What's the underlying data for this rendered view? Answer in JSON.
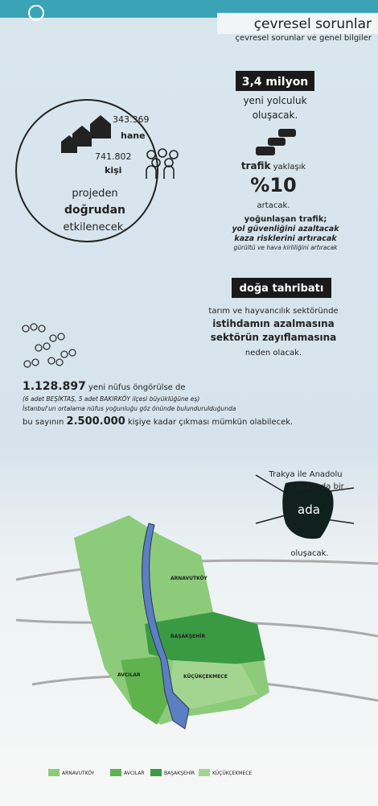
{
  "header": {
    "title": "çevresel sorunlar",
    "subtitle": "çevresel sorunlar ve genel bilgiler"
  },
  "impact": {
    "households": "343.369",
    "households_label": "hane",
    "people": "741.802",
    "people_label": "kişi",
    "lines": [
      "projeden",
      "doğrudan",
      "etkilenecek."
    ]
  },
  "traffic": {
    "trips": "3,4 milyon",
    "trips_lines": [
      "yeni yolculuk",
      "oluşacak."
    ],
    "traffic_label": "trafik",
    "approx": "yaklaşık",
    "increase": "%10",
    "increase_tail": "artacak.",
    "note_title": "yoğunlaşan trafik;",
    "notes": [
      "yol güvenliğini azaltacak",
      "kaza risklerini artıracak",
      "gürültü ve hava kirliliğini artıracak"
    ]
  },
  "nature": {
    "title": "doğa tahribatı",
    "lines": [
      "tarım ve hayvancılık sektöründe",
      "istihdamın azalmasına",
      "sektörün zayıflamasına",
      "neden olacak."
    ]
  },
  "population": {
    "new": "1.128.897",
    "new_tail": "yeni nüfus öngörülse de",
    "note": "(6 adet BEŞİKTAŞ, 5 adet BAKIRKÖY ilçesi büyüklüğüne eş)",
    "density": "İstanbul'un ortalama nüfus yoğunluğu göz önünde bulundurulduğunda",
    "max_head": "bu sayının",
    "max": "2.500.000",
    "max_tail": "kişiye kadar çıkması mümkün olabilecek."
  },
  "island": {
    "lines": [
      "Trakya ile Anadolu",
      "arasında bir"
    ],
    "word": "ada",
    "tail": "oluşacak."
  },
  "map": {
    "districts": [
      "ARNAVUTKÖY",
      "BAŞAKŞEHİR",
      "AVCILAR",
      "KÜÇÜKÇEKMECE"
    ],
    "legend": [
      "ARNAVUTKÖY",
      "AVCILAR",
      "BAŞAKŞEHİR",
      "KÜÇÜKÇEKMECE"
    ]
  }
}
